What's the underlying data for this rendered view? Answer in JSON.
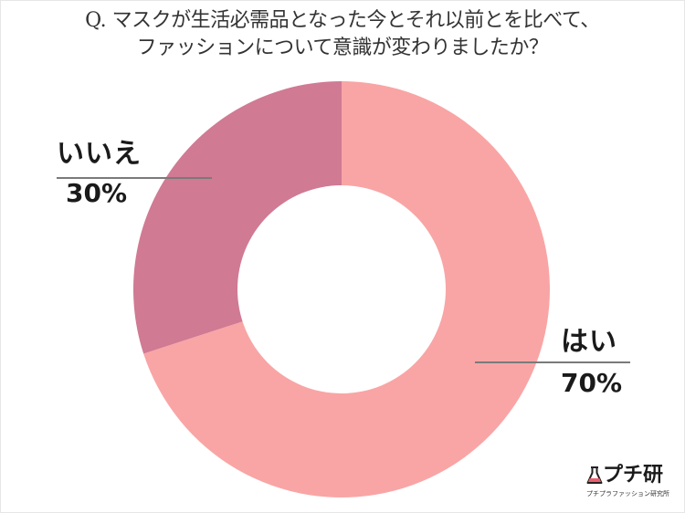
{
  "title": {
    "line1": "Q. マスクが生活必需品となった今とそれ以前とを比べて、",
    "line2": "ファッションについて意識が変わりましたか？"
  },
  "labels": {
    "no": {
      "category": "いいえ",
      "percent": "30%"
    },
    "yes": {
      "category": "はい",
      "percent": "70%"
    }
  },
  "logo": {
    "icon": "flask-icon",
    "name": "プチ研",
    "subtitle": "プチプラファッション研究所"
  },
  "colors": {
    "yes": "#F9A5A5",
    "no": "#D07A94",
    "leader_line": "#7A7A7A",
    "title_text": "#333333"
  },
  "chart_data": {
    "type": "pie",
    "variant": "donut",
    "title": "Q. マスクが生活必需品となった今とそれ以前とを比べて、ファッションについて意識が変わりましたか？",
    "categories": [
      "はい",
      "いいえ"
    ],
    "values": [
      70,
      30
    ],
    "unit": "%",
    "colors": [
      "#F9A5A5",
      "#D07A94"
    ],
    "start_angle": "12 o'clock, はい clockwise",
    "legend": "none (direct labels with leader lines)"
  }
}
